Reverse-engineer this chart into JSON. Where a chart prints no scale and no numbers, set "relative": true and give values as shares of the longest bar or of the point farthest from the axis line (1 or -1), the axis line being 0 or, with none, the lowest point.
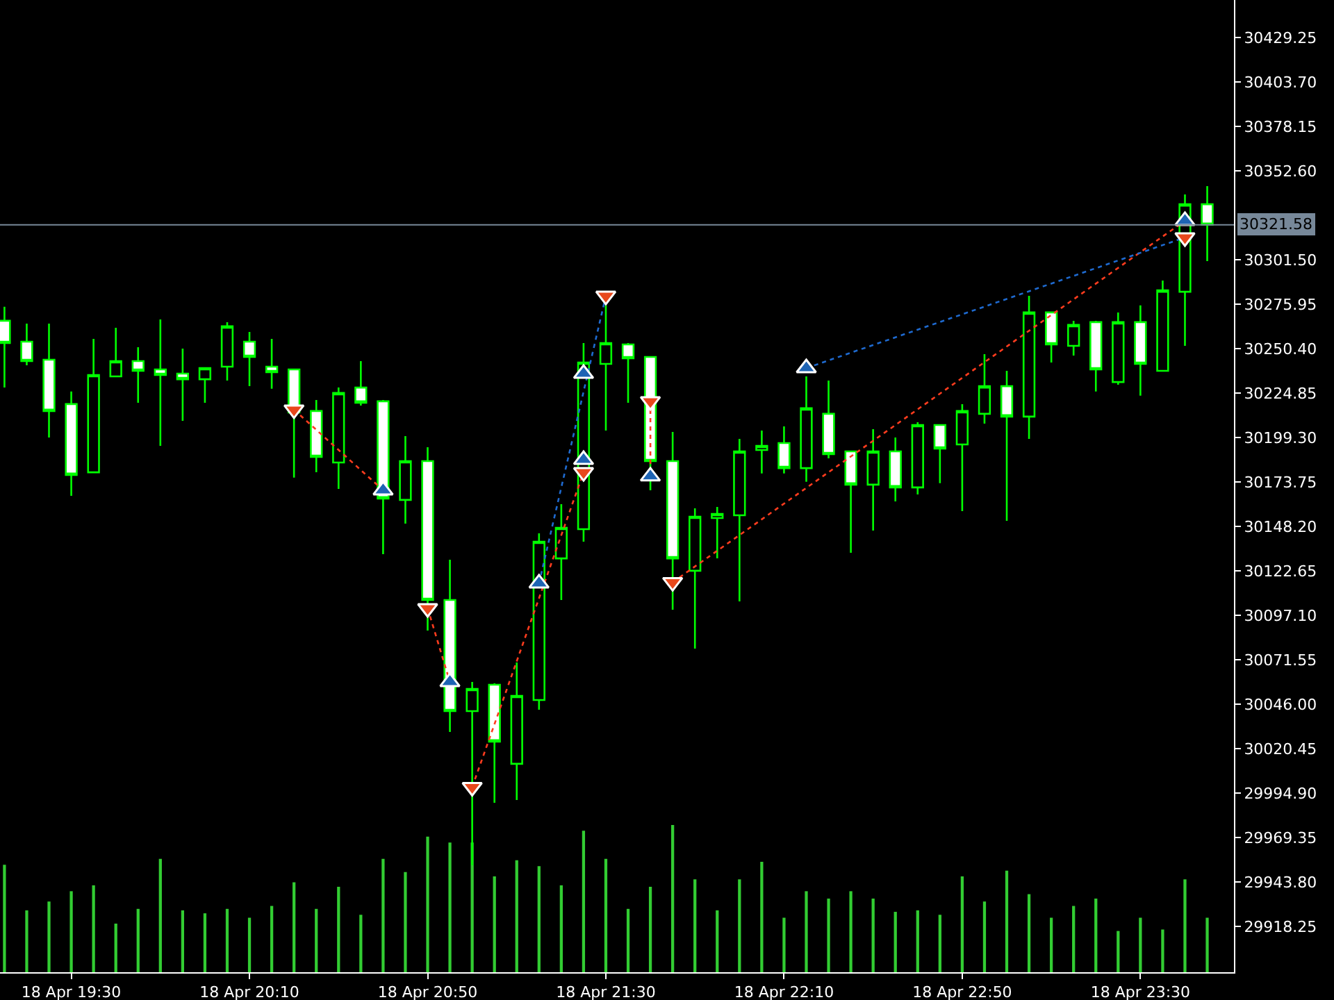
{
  "chart_data": [
    {
      "type": "candlestick",
      "color": "#00ff00",
      "x": [
        "--04-18T19:15",
        "--04-18T19:20",
        "--04-18T19:25",
        "--04-18T19:30",
        "--04-18T19:35",
        "--04-18T19:40",
        "--04-18T19:45",
        "--04-18T19:50",
        "--04-18T19:55",
        "--04-18T20:00",
        "--04-18T20:05",
        "--04-18T20:10",
        "--04-18T20:15",
        "--04-18T20:20",
        "--04-18T20:25",
        "--04-18T20:30",
        "--04-18T20:35",
        "--04-18T20:40",
        "--04-18T20:45",
        "--04-18T20:50",
        "--04-18T20:55",
        "--04-18T21:00",
        "--04-18T21:05",
        "--04-18T21:10",
        "--04-18T21:15",
        "--04-18T21:20",
        "--04-18T21:25",
        "--04-18T21:30",
        "--04-18T21:35",
        "--04-18T21:40",
        "--04-18T21:45",
        "--04-18T21:50",
        "--04-18T21:55",
        "--04-18T22:00",
        "--04-18T22:05",
        "--04-18T22:10",
        "--04-18T22:15",
        "--04-18T22:20",
        "--04-18T22:25",
        "--04-18T22:30",
        "--04-18T22:35",
        "--04-18T22:40",
        "--04-18T22:45",
        "--04-18T22:50",
        "--04-18T22:55",
        "--04-18T23:00",
        "--04-18T23:05",
        "--04-18T23:10",
        "--04-18T23:15",
        "--04-18T23:20",
        "--04-18T23:25",
        "--04-18T23:30",
        "--04-18T23:35",
        "--04-18T23:40",
        "--04-18T23:45"
      ],
      "ohlc": [
        [
          30266.4,
          30274.4,
          30228.0,
          30253.6
        ],
        [
          30254.4,
          30264.8,
          30240.8,
          30243.2
        ],
        [
          30244.0,
          30264.8,
          30199.3,
          30214.5
        ],
        [
          30218.5,
          30225.7,
          30165.8,
          30177.8
        ],
        [
          30179.3,
          30256.0,
          30179.3,
          30235.2
        ],
        [
          30234.4,
          30262.4,
          30234.4,
          30243.2
        ],
        [
          30243.2,
          30251.2,
          30219.3,
          30237.6
        ],
        [
          30238.4,
          30267.2,
          30194.5,
          30235.2
        ],
        [
          30236.0,
          30250.4,
          30208.9,
          30232.8
        ],
        [
          30232.8,
          30239.2,
          30219.3,
          30239.2
        ],
        [
          30240.0,
          30265.6,
          30232.0,
          30263.2
        ],
        [
          30254.4,
          30260.0,
          30228.8,
          30245.6
        ],
        [
          30240.0,
          30256.0,
          30227.3,
          30236.8
        ],
        [
          30238.4,
          30238.4,
          30176.2,
          30213.7
        ],
        [
          30214.5,
          30220.9,
          30179.3,
          30188.1
        ],
        [
          30184.9,
          30228.0,
          30169.8,
          30224.9
        ],
        [
          30228.0,
          30243.2,
          30217.7,
          30219.3
        ],
        [
          30220.1,
          30220.9,
          30132.2,
          30164.2
        ],
        [
          30163.4,
          30200.1,
          30149.8,
          30185.7
        ],
        [
          30185.7,
          30193.7,
          30088.3,
          30105.9
        ],
        [
          30105.9,
          30129.0,
          30030.0,
          30042.0
        ],
        [
          30042.0,
          30058.8,
          29953.4,
          30054.8
        ],
        [
          30057.2,
          30058.0,
          29989.3,
          30024.5
        ],
        [
          30011.7,
          30070.0,
          29990.9,
          30050.8
        ],
        [
          30048.4,
          30144.2,
          30042.8,
          30139.4
        ],
        [
          30129.8,
          30161.0,
          30105.9,
          30147.4
        ],
        [
          30146.6,
          30253.6,
          30139.4,
          30242.4
        ],
        [
          30241.6,
          30275.2,
          30203.3,
          30253.6
        ],
        [
          30252.8,
          30253.6,
          30219.3,
          30244.8
        ],
        [
          30245.6,
          30245.6,
          30169.0,
          30185.7
        ],
        [
          30185.7,
          30202.5,
          30100.3,
          30129.8
        ],
        [
          30122.7,
          30158.6,
          30077.9,
          30153.8
        ],
        [
          30153.0,
          30159.4,
          30129.8,
          30155.4
        ],
        [
          30154.6,
          30198.5,
          30105.1,
          30191.3
        ],
        [
          30192.1,
          30203.3,
          30178.6,
          30194.5
        ],
        [
          30196.1,
          30205.7,
          30178.6,
          30181.7
        ],
        [
          30181.7,
          30234.4,
          30173.8,
          30216.1
        ],
        [
          30212.9,
          30232.0,
          30187.3,
          30189.7
        ],
        [
          30191.3,
          30191.3,
          30133.0,
          30172.2
        ],
        [
          30172.2,
          30204.1,
          30145.8,
          30191.3
        ],
        [
          30191.3,
          30199.3,
          30162.6,
          30170.6
        ],
        [
          30170.6,
          30208.1,
          30166.6,
          30206.5
        ],
        [
          30206.5,
          30206.5,
          30173.0,
          30192.9
        ],
        [
          30195.3,
          30218.5,
          30157.0,
          30214.5
        ],
        [
          30212.9,
          30247.2,
          30207.3,
          30228.8
        ],
        [
          30228.8,
          30237.6,
          30151.4,
          30211.3
        ],
        [
          30211.3,
          30280.7,
          30198.5,
          30271.2
        ],
        [
          30271.2,
          30271.2,
          30242.4,
          30252.8
        ],
        [
          30252.0,
          30266.4,
          30246.4,
          30264.0
        ],
        [
          30265.6,
          30266.4,
          30225.7,
          30238.4
        ],
        [
          30231.2,
          30271.2,
          30229.6,
          30265.6
        ],
        [
          30265.6,
          30275.2,
          30223.3,
          30241.6
        ],
        [
          30237.6,
          30289.5,
          30237.6,
          30283.9
        ],
        [
          30283.1,
          30339.0,
          30252.0,
          30333.4
        ],
        [
          30333.4,
          30343.8,
          30300.7,
          30321.58
        ]
      ],
      "xlim": [
        "--04-18T19:14",
        "--04-18T23:51"
      ],
      "xticks": [
        {
          "value": "--04-18T19:30",
          "label": "18 Apr 19:30"
        },
        {
          "value": "--04-18T20:10",
          "label": "18 Apr 20:10"
        },
        {
          "value": "--04-18T20:50",
          "label": "18 Apr 20:50"
        },
        {
          "value": "--04-18T21:30",
          "label": "18 Apr 21:30"
        },
        {
          "value": "--04-18T22:10",
          "label": "18 Apr 22:10"
        },
        {
          "value": "--04-18T22:50",
          "label": "18 Apr 22:50"
        },
        {
          "value": "--04-18T23:30",
          "label": "18 Apr 23:30"
        }
      ],
      "ylim": [
        29891.9,
        30450.8
      ],
      "yticks": [
        30429.25,
        {
          "value": 30403.7,
          "label": "30403.70"
        },
        30378.15,
        {
          "value": 30352.6,
          "label": "30352.60"
        },
        {
          "value": 30301.5,
          "label": "30301.50"
        },
        30275.95,
        {
          "value": 30250.4,
          "label": "30250.40"
        },
        30224.85,
        {
          "value": 30199.3,
          "label": "30199.30"
        },
        30173.75,
        {
          "value": 30148.2,
          "label": "30148.20"
        },
        30122.65,
        {
          "value": 30097.1,
          "label": "30097.10"
        },
        30071.55,
        {
          "value": 30046,
          "label": "30046.00"
        },
        30020.45,
        {
          "value": 29994.9,
          "label": "29994.90"
        },
        29969.35,
        {
          "value": 29943.8,
          "label": "29943.80"
        },
        29918.25
      ],
      "tick_labels": true,
      "ref_lines": [
        {
          "axis": "y",
          "value": 30321.58,
          "label": "30321.58",
          "color": "#778899"
        }
      ],
      "series": [
        {
          "type": "line",
          "line_style": "dotted",
          "color": "#ff3c1e",
          "x": [
            "--04-18T20:20",
            "--04-18T20:40"
          ],
          "values": [
            30215.3,
            30169.0
          ]
        },
        {
          "type": "line",
          "line_style": "dotted",
          "color": "#ff3c1e",
          "x": [
            "--04-18T20:50",
            "--04-18T20:55"
          ],
          "values": [
            30101.1,
            30058.8
          ]
        },
        {
          "type": "line",
          "line_style": "dotted",
          "color": "#ff3c1e",
          "x": [
            "--04-18T21:00",
            "--04-18T21:25"
          ],
          "values": [
            29998.3,
            30179.3
          ]
        },
        {
          "type": "line",
          "line_style": "dotted",
          "color": "#1e6ad0",
          "x": [
            "--04-18T21:15",
            "--04-18T21:30"
          ],
          "values": [
            30115.5,
            30280.7
          ]
        },
        {
          "type": "line",
          "line_style": "dotted",
          "color": "#ff3c1e",
          "x": [
            "--04-18T21:40",
            "--04-18T21:40"
          ],
          "values": [
            30220.1,
            30177.0
          ]
        },
        {
          "type": "line",
          "line_style": "dotted",
          "color": "#ff3c1e",
          "x": [
            "--04-18T21:45",
            "--04-18T23:40"
          ],
          "values": [
            30116.1,
            30323.9
          ]
        },
        {
          "type": "line",
          "line_style": "dotted",
          "color": "#1e6ad0",
          "x": [
            "--04-18T22:15",
            "--04-18T23:40"
          ],
          "values": [
            30239.2,
            30314.3
          ]
        },
        {
          "type": "scatter",
          "marker": "triangle-down",
          "color": "#e8481c",
          "x": [
            "--04-18T20:20",
            "--04-18T20:50",
            "--04-18T21:00",
            "--04-18T21:25",
            "--04-18T21:30",
            "--04-18T21:40",
            "--04-18T21:45",
            "--04-18T23:40"
          ],
          "values": [
            30215.3,
            30101.1,
            29998.3,
            30179.3,
            30280.7,
            30220.1,
            30116.1,
            30314.3
          ]
        },
        {
          "type": "scatter",
          "marker": "triangle",
          "color": "#1e64b4",
          "x": [
            "--04-18T20:40",
            "--04-18T20:55",
            "--04-18T21:15",
            "--04-18T21:25",
            "--04-18T21:25",
            "--04-18T21:40",
            "--04-18T22:15",
            "--04-18T23:40"
          ],
          "values": [
            30169.0,
            30058.8,
            30115.5,
            30186.5,
            30236.0,
            30177.0,
            30239.2,
            30323.9
          ]
        }
      ]
    },
    {
      "type": "bar",
      "relative": true,
      "color": "#32cd32",
      "tick_labels": false,
      "xlim": [
        "--04-18T19:14",
        "--04-18T23:51"
      ],
      "x": [
        "--04-18T19:15",
        "--04-18T19:20",
        "--04-18T19:25",
        "--04-18T19:30",
        "--04-18T19:35",
        "--04-18T19:40",
        "--04-18T19:45",
        "--04-18T19:50",
        "--04-18T19:55",
        "--04-18T20:00",
        "--04-18T20:05",
        "--04-18T20:10",
        "--04-18T20:15",
        "--04-18T20:20",
        "--04-18T20:25",
        "--04-18T20:30",
        "--04-18T20:35",
        "--04-18T20:40",
        "--04-18T20:45",
        "--04-18T20:50",
        "--04-18T20:55",
        "--04-18T21:00",
        "--04-18T21:05",
        "--04-18T21:10",
        "--04-18T21:15",
        "--04-18T21:20",
        "--04-18T21:25",
        "--04-18T21:30",
        "--04-18T21:35",
        "--04-18T21:40",
        "--04-18T21:45",
        "--04-18T21:50",
        "--04-18T21:55",
        "--04-18T22:00",
        "--04-18T22:05",
        "--04-18T22:10",
        "--04-18T22:15",
        "--04-18T22:20",
        "--04-18T22:25",
        "--04-18T22:30",
        "--04-18T22:35",
        "--04-18T22:40",
        "--04-18T22:45",
        "--04-18T22:50",
        "--04-18T22:55",
        "--04-18T23:00",
        "--04-18T23:05",
        "--04-18T23:10",
        "--04-18T23:15",
        "--04-18T23:20",
        "--04-18T23:25",
        "--04-18T23:30",
        "--04-18T23:35",
        "--04-18T23:40",
        "--04-18T23:45"
      ],
      "values": [
        0.73,
        0.42,
        0.48,
        0.55,
        0.59,
        0.33,
        0.43,
        0.77,
        0.42,
        0.4,
        0.43,
        0.37,
        0.45,
        0.61,
        0.43,
        0.58,
        0.39,
        0.77,
        0.68,
        0.92,
        0.88,
        0.88,
        0.65,
        0.76,
        0.72,
        0.59,
        0.96,
        0.77,
        0.43,
        0.58,
        1,
        0.63,
        0.42,
        0.63,
        0.75,
        0.37,
        0.55,
        0.5,
        0.55,
        0.5,
        0.41,
        0.42,
        0.39,
        0.65,
        0.48,
        0.69,
        0.53,
        0.37,
        0.45,
        0.5,
        0.28,
        0.37,
        0.29,
        0.63,
        0.37
      ]
    }
  ]
}
